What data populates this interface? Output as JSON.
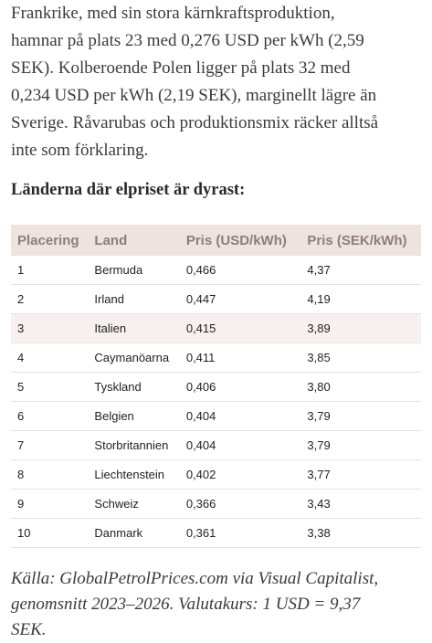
{
  "article": {
    "paragraph_lines": [
      "Frankrike, med sin stora kärnkraftsproduktion,",
      "hamnar på plats 23 med 0,276 USD per kWh (2,59",
      "SEK). Kolberoende Polen ligger på plats 32 med",
      "0,234 USD per kWh (2,19 SEK), marginellt lägre än",
      "Sverige. Råvarubas och produktionsmix räcker alltså",
      "inte som förklaring."
    ],
    "heading": "Länderna där elpriset är dyrast:",
    "table": {
      "headers": [
        "Placering",
        "Land",
        "Pris (USD/kWh)",
        "Pris (SEK/kWh)"
      ],
      "rows": [
        [
          "1",
          "Bermuda",
          "0,466",
          "4,37"
        ],
        [
          "2",
          "Irland",
          "0,447",
          "4,19"
        ],
        [
          "3",
          "Italien",
          "0,415",
          "3,89"
        ],
        [
          "4",
          "Caymanöarna",
          "0,411",
          "3,85"
        ],
        [
          "5",
          "Tyskland",
          "0,406",
          "3,80"
        ],
        [
          "6",
          "Belgien",
          "0,404",
          "3,79"
        ],
        [
          "7",
          "Storbritannien",
          "0,404",
          "3,79"
        ],
        [
          "8",
          "Liechtenstein",
          "0,402",
          "3,77"
        ],
        [
          "9",
          "Schweiz",
          "0,366",
          "3,43"
        ],
        [
          "10",
          "Danmark",
          "0,361",
          "3,38"
        ]
      ]
    },
    "source_lines": [
      "Källa: GlobalPetrolPrices.com via Visual Capitalist,",
      "genomsnitt 2023–2026. Valutakurs: 1 USD = 9,37",
      "SEK."
    ]
  }
}
